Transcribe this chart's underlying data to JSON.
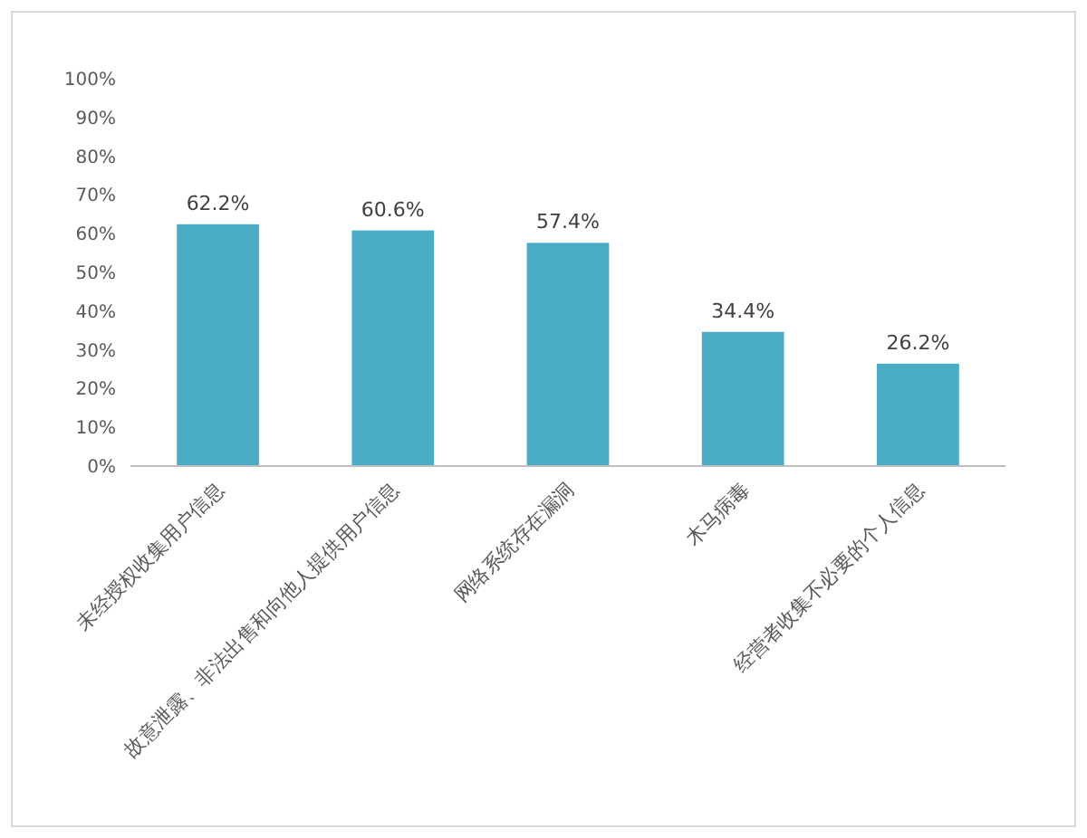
{
  "chart_data": {
    "type": "bar",
    "categories": [
      "未经授权收集用户信息",
      "故意泄露、非法出售和向他人提供用户信息",
      "网络系统存在漏洞",
      "木马病毒",
      "经营者收集不必要的个人信息"
    ],
    "values": [
      62.2,
      60.6,
      57.4,
      34.4,
      26.2
    ],
    "value_labels": [
      "62.2%",
      "60.6%",
      "57.4%",
      "34.4%",
      "26.2%"
    ],
    "color": "#4bacc6",
    "ylim": [
      0,
      100
    ],
    "yticks": [
      {
        "value": 0,
        "label": "0%"
      },
      {
        "value": 10,
        "label": "10%"
      },
      {
        "value": 20,
        "label": "20%"
      },
      {
        "value": 30,
        "label": "30%"
      },
      {
        "value": 40,
        "label": "40%"
      },
      {
        "value": 50,
        "label": "50%"
      },
      {
        "value": 60,
        "label": "60%"
      },
      {
        "value": 70,
        "label": "70%"
      },
      {
        "value": 80,
        "label": "80%"
      },
      {
        "value": 90,
        "label": "90%"
      },
      {
        "value": 100,
        "label": "100%"
      }
    ],
    "grid": false
  }
}
